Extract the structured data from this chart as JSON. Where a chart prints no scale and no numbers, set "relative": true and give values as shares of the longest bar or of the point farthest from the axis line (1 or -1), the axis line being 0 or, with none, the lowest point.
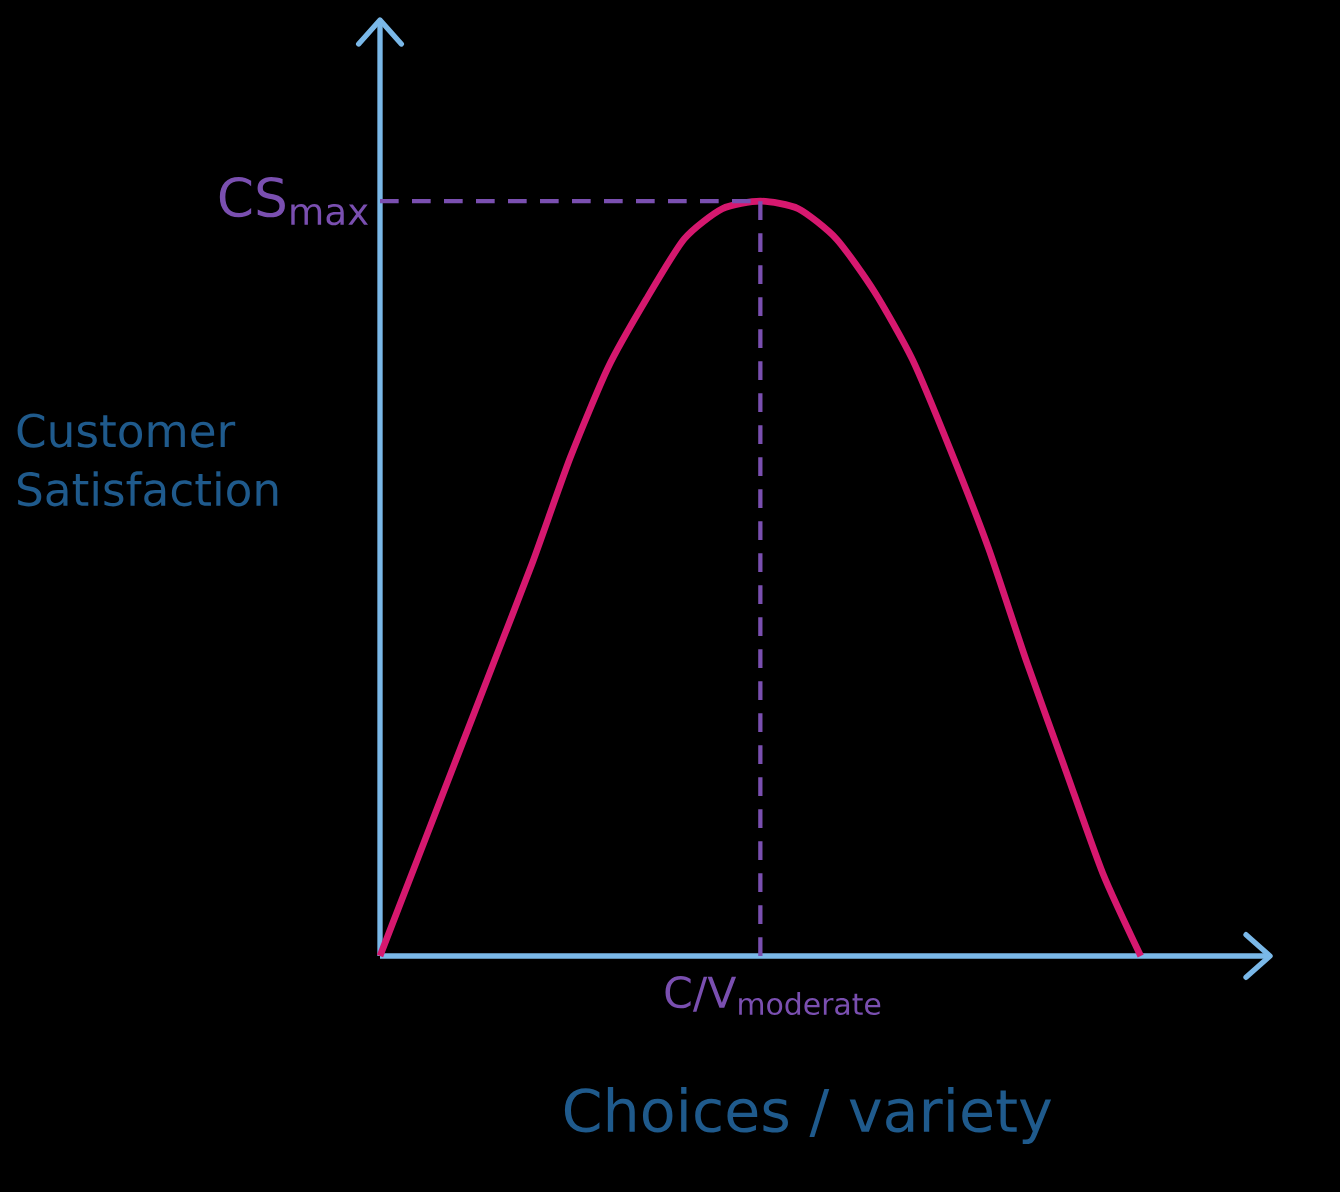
{
  "chart_data": {
    "type": "line",
    "relative": true,
    "xlabel": "Choices / variety",
    "ylabel": "Customer Satisfaction",
    "categories": [
      null,
      null,
      null,
      null,
      null,
      null,
      null,
      null,
      null,
      null,
      null,
      null,
      null,
      null,
      null,
      null,
      null,
      null,
      null,
      null,
      null
    ],
    "series": [
      {
        "color": "#d6186f",
        "values": [
          0,
          0.13,
          0.26,
          0.39,
          0.52,
          0.66,
          0.78,
          0.87,
          0.95,
          0.99,
          1,
          0.99,
          0.95,
          0.88,
          0.79,
          0.67,
          0.54,
          0.39,
          0.25,
          0.11,
          0
        ]
      }
    ],
    "ref_lines": [
      {
        "axis": "y",
        "value": 1,
        "label": "CS$_{max}$",
        "color": "#7a4fb0",
        "line_style": "dashed"
      }
    ],
    "annotations": [
      "C/V$_{moderate}$"
    ],
    "legend": false,
    "marker": "none",
    "line_style": "solid"
  }
}
